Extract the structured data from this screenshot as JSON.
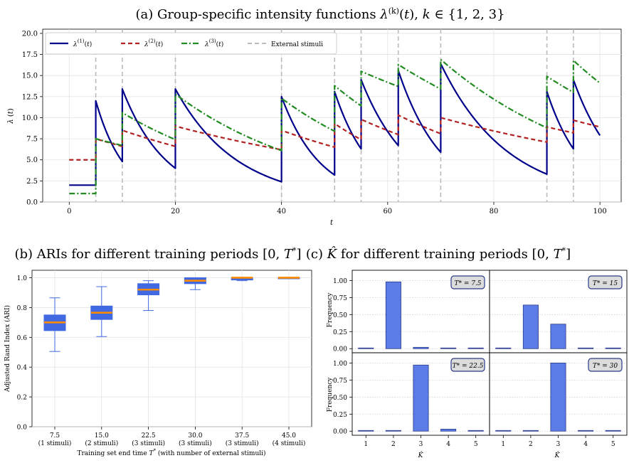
{
  "chart_data": [
    {
      "type": "line",
      "title": "(a) Group-specific intensity functions λ^(k)(t),  k ∈ {1, 2, 3}",
      "xlabel": "t",
      "ylabel": "λ(t)",
      "xlim": [
        -5,
        104
      ],
      "ylim": [
        0,
        20.5
      ],
      "xticks": [
        0,
        20,
        40,
        60,
        80,
        100
      ],
      "yticks": [
        0.0,
        2.5,
        5.0,
        7.5,
        10.0,
        12.5,
        15.0,
        17.5,
        20.0
      ],
      "grid": true,
      "legend_position": "top-left",
      "external_stimuli": [
        5,
        10,
        20,
        40,
        50,
        55,
        62,
        70,
        90,
        95
      ],
      "x_start": 0,
      "x_end": 100,
      "series": [
        {
          "name": "λ(1)(t)",
          "baseline": 2.0,
          "color": "#00008b",
          "style": "solid",
          "jumps": [
            [
              5,
              12.0
            ],
            [
              10,
              13.4
            ],
            [
              20,
              13.4
            ],
            [
              40,
              12.5
            ],
            [
              50,
              13.1
            ],
            [
              55,
              14.5
            ],
            [
              62,
              15.6
            ],
            [
              70,
              16.4
            ],
            [
              90,
              13.1
            ],
            [
              95,
              14.5
            ]
          ],
          "pre": [
            [
              10,
              4.8
            ],
            [
              20,
              4.0
            ],
            [
              40,
              2.4
            ],
            [
              50,
              3.2
            ],
            [
              55,
              6.3
            ],
            [
              62,
              6.7
            ],
            [
              70,
              5.9
            ],
            [
              90,
              3.3
            ],
            [
              95,
              6.3
            ],
            [
              100,
              7.9
            ]
          ]
        },
        {
          "name": "λ(2)(t)",
          "baseline": 5.0,
          "color": "#b22222",
          "style": "dashed",
          "jumps": [
            [
              5,
              7.5
            ],
            [
              10,
              8.5
            ],
            [
              20,
              9.0
            ],
            [
              40,
              8.5
            ],
            [
              50,
              9.3
            ],
            [
              55,
              9.8
            ],
            [
              62,
              10.3
            ],
            [
              70,
              10.0
            ],
            [
              90,
              8.9
            ],
            [
              95,
              9.7
            ]
          ],
          "pre": [
            [
              10,
              6.6
            ],
            [
              20,
              6.6
            ],
            [
              40,
              6.2
            ],
            [
              50,
              6.5
            ],
            [
              55,
              7.4
            ],
            [
              62,
              8.0
            ],
            [
              70,
              8.1
            ],
            [
              90,
              7.1
            ],
            [
              95,
              8.2
            ],
            [
              100,
              8.9
            ]
          ]
        },
        {
          "name": "λ(3)(t)",
          "baseline": 1.0,
          "color": "#228b22",
          "style": "dashdot",
          "jumps": [
            [
              5,
              7.5
            ],
            [
              10,
              10.6
            ],
            [
              20,
              12.8
            ],
            [
              40,
              12.3
            ],
            [
              50,
              13.8
            ],
            [
              55,
              15.5
            ],
            [
              62,
              16.3
            ],
            [
              70,
              16.9
            ],
            [
              90,
              14.9
            ],
            [
              95,
              16.8
            ]
          ],
          "pre": [
            [
              10,
              6.7
            ],
            [
              20,
              7.4
            ],
            [
              40,
              6.1
            ],
            [
              50,
              8.4
            ],
            [
              55,
              11.4
            ],
            [
              62,
              13.7
            ],
            [
              70,
              13.4
            ],
            [
              90,
              8.8
            ],
            [
              95,
              13.0
            ],
            [
              100,
              14.1
            ]
          ]
        }
      ],
      "legend_extra": "External stimuli"
    },
    {
      "type": "box",
      "title": "(b) ARIs for different training periods [0, T*]",
      "xlabel": "Training set end time T* (with number of external stimuli)",
      "ylabel": "Adjusted Rand Index (ARI)",
      "ylim": [
        0,
        1.05
      ],
      "yticks": [
        0.0,
        0.2,
        0.4,
        0.6,
        0.8,
        1.0
      ],
      "grid": true,
      "categories": [
        "7.5",
        "15.0",
        "22.5",
        "30.0",
        "37.5",
        "45.0"
      ],
      "category_notes": [
        "(1 stimuli)",
        "(2 stimuli)",
        "(3 stimuli)",
        "(3 stimuli)",
        "(3 stimuli)",
        "(4 stimuli)"
      ],
      "boxes": [
        {
          "min": 0.505,
          "q1": 0.645,
          "median": 0.7,
          "q3": 0.75,
          "max": 0.865
        },
        {
          "min": 0.605,
          "q1": 0.72,
          "median": 0.765,
          "q3": 0.81,
          "max": 0.94
        },
        {
          "min": 0.78,
          "q1": 0.885,
          "median": 0.92,
          "q3": 0.96,
          "max": 0.98
        },
        {
          "min": 0.92,
          "q1": 0.96,
          "median": 0.98,
          "q3": 1.0,
          "max": 1.0
        },
        {
          "min": 0.98,
          "q1": 0.985,
          "median": 1.0,
          "q3": 1.0,
          "max": 1.0
        },
        {
          "min": 1.0,
          "q1": 1.0,
          "median": 1.0,
          "q3": 1.0,
          "max": 1.0
        }
      ],
      "box_color": "#4169e1",
      "median_color": "#ff8c00"
    },
    {
      "type": "bar",
      "title": "(c) K̂ for different training periods [0, T*]",
      "xlabel": "K̂",
      "ylabel": "Frequency",
      "categories": [
        "1",
        "2",
        "3",
        "4",
        "5"
      ],
      "ylim": [
        -0.06,
        1.15
      ],
      "yticks": [
        0.0,
        0.25,
        0.5,
        0.75,
        1.0
      ],
      "panels": [
        {
          "label": "T* = 7.5",
          "values": [
            0.0,
            0.98,
            0.02,
            0.0,
            0.0
          ]
        },
        {
          "label": "T* = 15",
          "values": [
            0.0,
            0.64,
            0.36,
            0.0,
            0.0
          ]
        },
        {
          "label": "T* = 22.5",
          "values": [
            0.0,
            0.0,
            0.97,
            0.03,
            0.0
          ]
        },
        {
          "label": "T* = 30",
          "values": [
            0.0,
            0.0,
            1.0,
            0.0,
            0.0
          ]
        }
      ],
      "bar_color": "#5b7be6"
    }
  ]
}
